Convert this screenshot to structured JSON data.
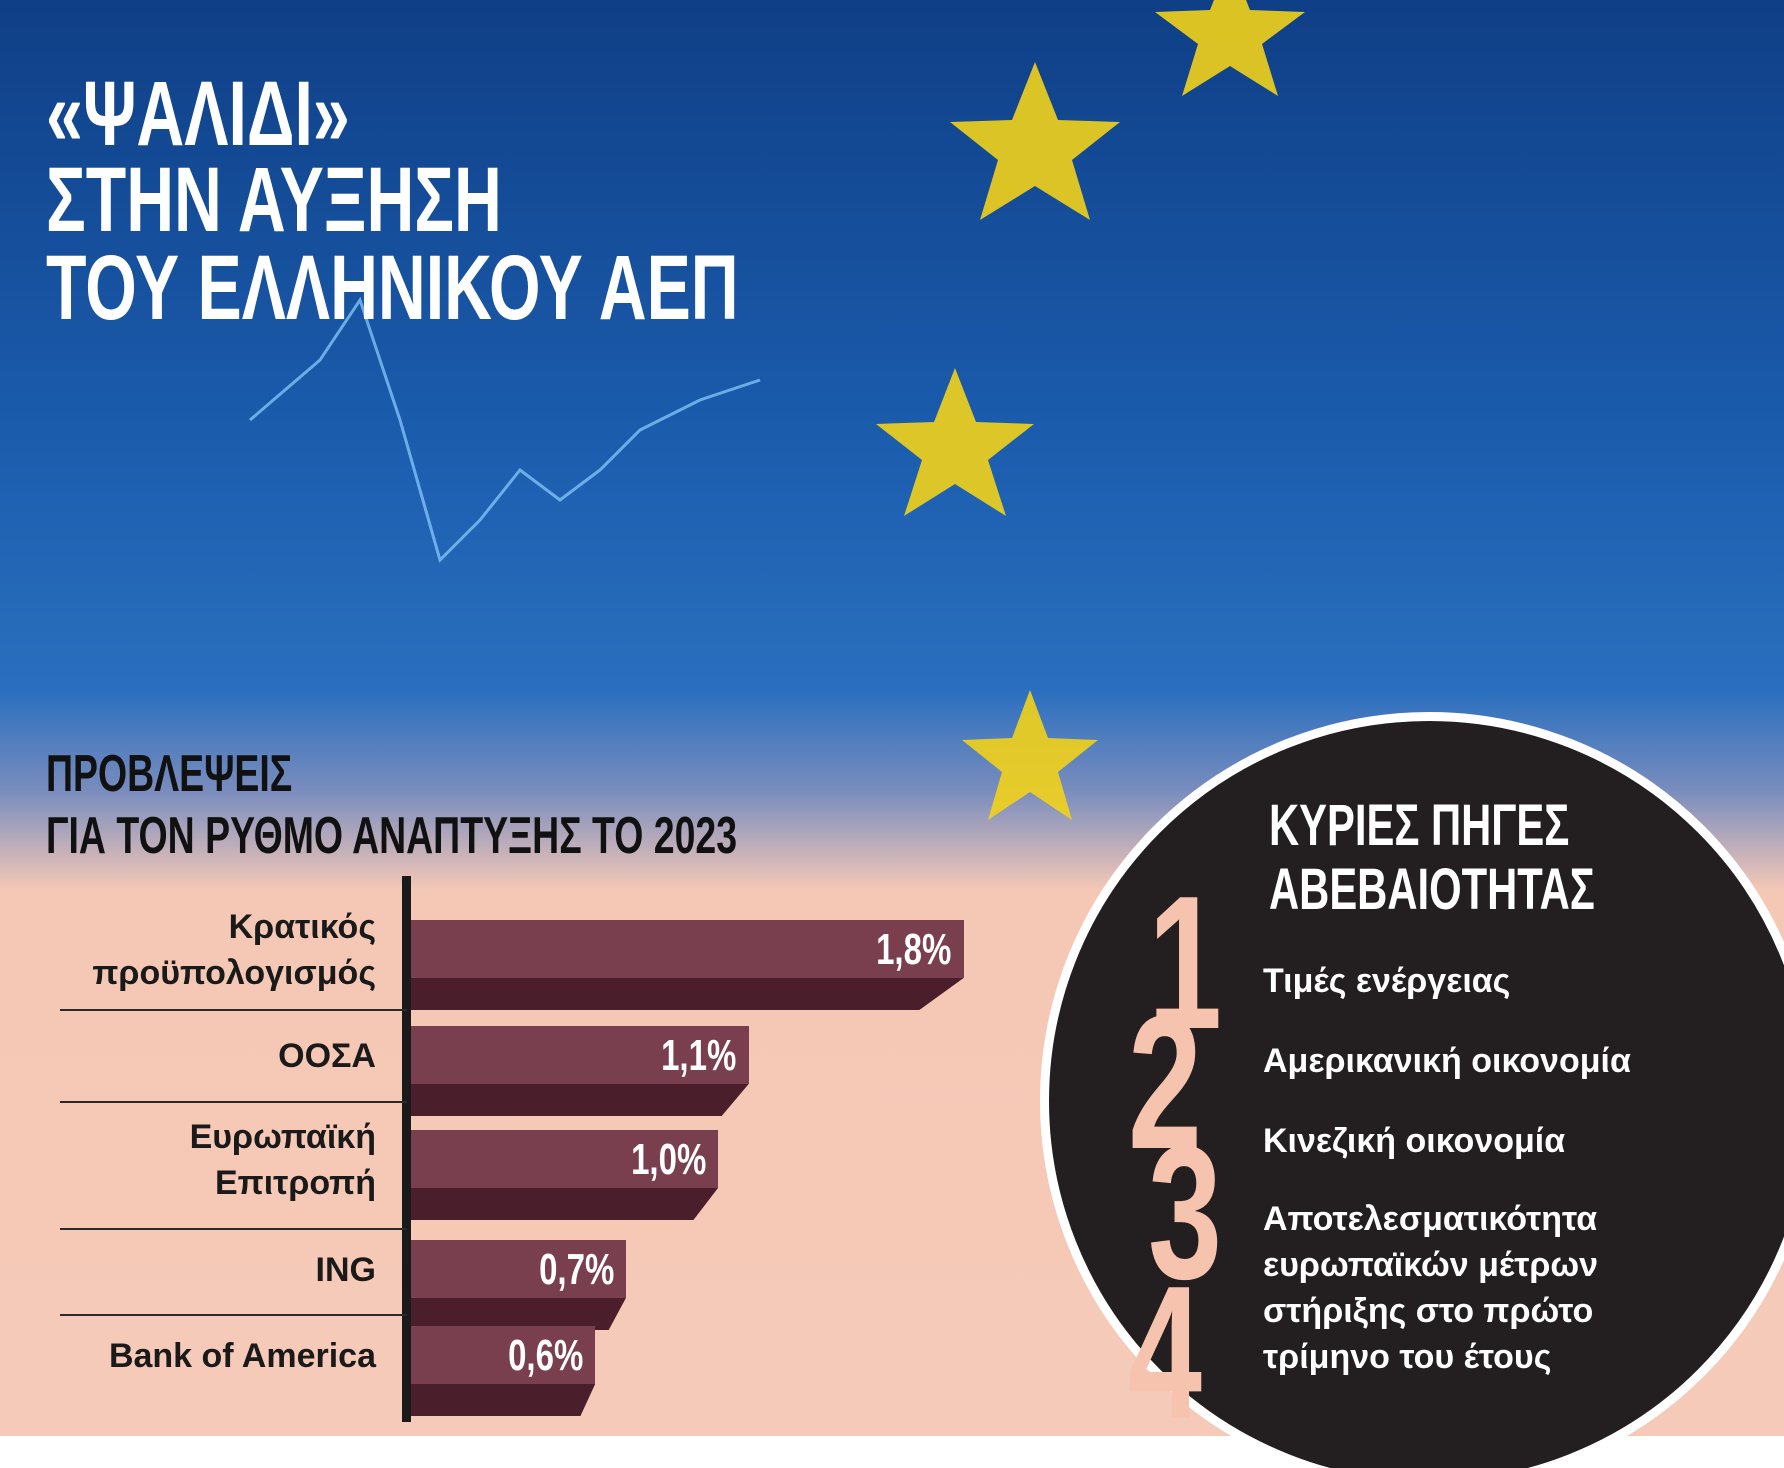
{
  "headline": [
    "«ΨΑΛΙΔΙ»",
    "ΣΤΗΝ ΑΥΞΗΣΗ",
    "ΤΟΥ ΕΛΛΗΝΙΚΟΥ ΑΕΠ"
  ],
  "chart_data": {
    "type": "bar",
    "orientation": "horizontal",
    "title": [
      "ΠΡΟΒΛΕΨΕΙΣ",
      "ΓΙΑ ΤΟΝ ΡΥΘΜΟ ΑΝΑΠΤΥΞΗΣ ΤΟ 2023"
    ],
    "categories": [
      "Κρατικός προϋπολογισμός",
      "ΟΟΣΑ",
      "Ευρωπαϊκή Επιτροπή",
      "ING",
      "Bank of America"
    ],
    "values": [
      1.8,
      1.1,
      1.0,
      0.7,
      0.6
    ],
    "value_labels": [
      "1,8%",
      "1,1%",
      "1,0%",
      "0,7%",
      "0,6%"
    ],
    "color": "#7a3f4f"
  },
  "sources": {
    "title": [
      "ΚΥΡΙΕΣ ΠΗΓΕΣ",
      "ΑΒΕΒΑΙΟΤΗΤΑΣ"
    ],
    "items": [
      {
        "number": "1",
        "text": "Τιμές ενέργειας"
      },
      {
        "number": "2",
        "text": "Αμερικανική οικονομία"
      },
      {
        "number": "3",
        "text": "Κινεζική οικονομία"
      },
      {
        "number": "4",
        "text": "Αποτελεσματικότητα ευρωπαϊκών μέτρων στήριξης στο πρώτο τρίμηνο του έτους"
      }
    ]
  }
}
